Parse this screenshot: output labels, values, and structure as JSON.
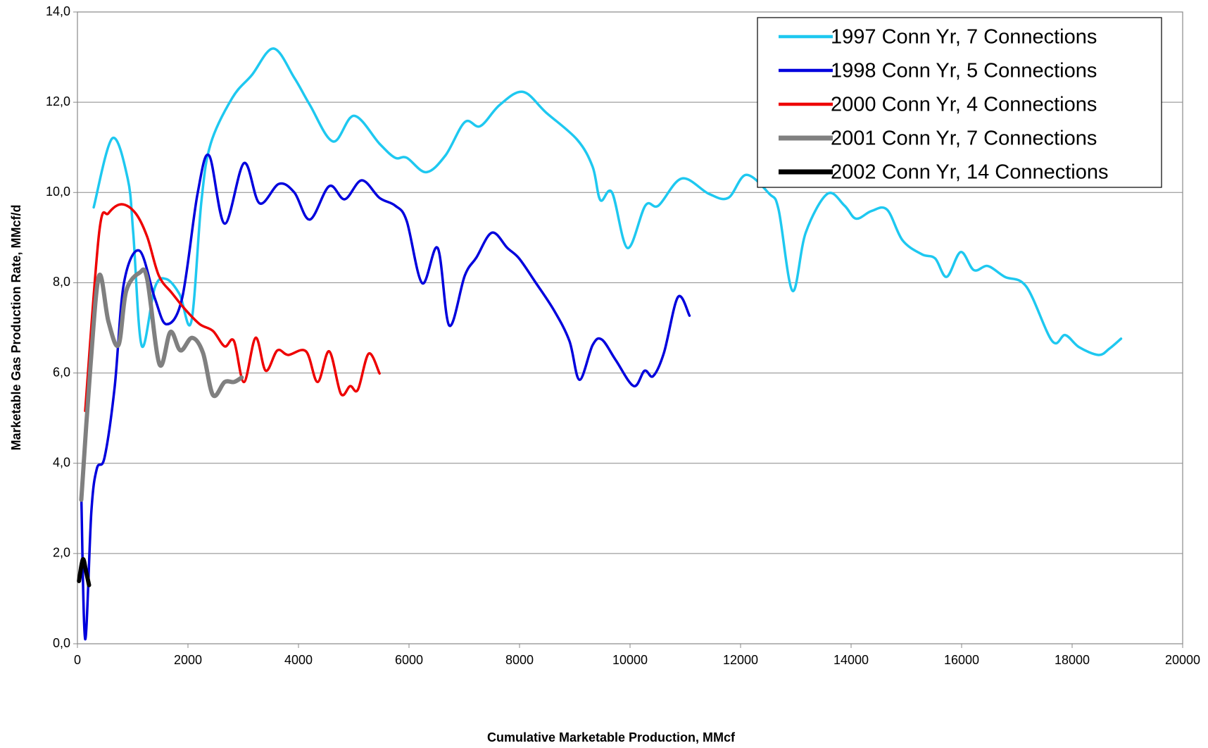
{
  "chart_data": {
    "type": "line",
    "x_label": "Cumulative Marketable Production, MMcf",
    "y_label": "Marketable Gas Production Rate, MMcf/d",
    "xlim": [
      0,
      20000
    ],
    "xticks": [
      0,
      2000,
      4000,
      6000,
      8000,
      10000,
      12000,
      14000,
      16000,
      18000,
      20000
    ],
    "ylim": [
      0,
      14
    ],
    "yticks": [
      {
        "value": 0,
        "label": "0,0"
      },
      {
        "value": 2,
        "label": "2,0"
      },
      {
        "value": 4,
        "label": "4,0"
      },
      {
        "value": 6,
        "label": "6,0"
      },
      {
        "value": 8,
        "label": "8,0"
      },
      {
        "value": 10,
        "label": "10,0"
      },
      {
        "value": 12,
        "label": "12,0"
      },
      {
        "value": 14,
        "label": "14,0"
      }
    ],
    "grid": true,
    "legend": "upper right",
    "series": [
      {
        "name": "1997 Conn Yr, 7 Connections",
        "color": "#1ec8f0",
        "width": 3.5,
        "x": [
          294,
          631,
          911,
          1010,
          1164,
          1402,
          1612,
          1851,
          2061,
          2243,
          2411,
          2804,
          3154,
          3547,
          3925,
          4206,
          4626,
          5005,
          5467,
          5748,
          5958,
          6309,
          6659,
          7010,
          7290,
          7641,
          8061,
          8482,
          9043,
          9323,
          9463,
          9674,
          9954,
          10277,
          10515,
          10936,
          11427,
          11777,
          12100,
          12520,
          12688,
          12940,
          13179,
          13571,
          13880,
          14090,
          14370,
          14651,
          14931,
          15282,
          15520,
          15730,
          15983,
          16221,
          16474,
          16782,
          17174,
          17637,
          17875,
          18128,
          18479,
          18675,
          18885
        ],
        "values": [
          9.67,
          11.2,
          10.3,
          9.1,
          6.6,
          7.9,
          8.08,
          7.74,
          7.14,
          9.8,
          11.08,
          12.1,
          12.6,
          13.19,
          12.54,
          11.94,
          11.13,
          11.7,
          11.08,
          10.77,
          10.77,
          10.45,
          10.82,
          11.56,
          11.47,
          11.94,
          12.23,
          11.77,
          11.17,
          10.57,
          9.83,
          10.0,
          8.77,
          9.71,
          9.71,
          10.31,
          9.97,
          9.88,
          10.39,
          9.97,
          9.62,
          7.82,
          9.11,
          9.97,
          9.71,
          9.42,
          9.59,
          9.62,
          8.94,
          8.63,
          8.54,
          8.13,
          8.68,
          8.28,
          8.37,
          8.13,
          7.91,
          6.71,
          6.84,
          6.57,
          6.4,
          6.54,
          6.76
        ]
      },
      {
        "name": "1998 Conn Yr, 5 Connections",
        "color": "#0000dd",
        "width": 3.5,
        "x": [
          70,
          140,
          252,
          351,
          491,
          673,
          841,
          1122,
          1402,
          1612,
          1893,
          2173,
          2383,
          2664,
          3014,
          3295,
          3645,
          3925,
          4206,
          4556,
          4837,
          5145,
          5467,
          5748,
          5958,
          6239,
          6519,
          6729,
          7010,
          7220,
          7501,
          7781,
          7992,
          8272,
          8623,
          8903,
          9085,
          9323,
          9491,
          9744,
          10067,
          10263,
          10417,
          10614,
          10866,
          11076
        ],
        "values": [
          3.28,
          0.1,
          2.93,
          3.88,
          4.13,
          5.68,
          7.99,
          8.71,
          7.65,
          7.08,
          7.65,
          9.97,
          10.82,
          9.31,
          10.65,
          9.76,
          10.19,
          10.0,
          9.4,
          10.14,
          9.85,
          10.27,
          9.88,
          9.71,
          9.37,
          7.99,
          8.77,
          7.05,
          8.16,
          8.56,
          9.11,
          8.77,
          8.54,
          8.04,
          7.39,
          6.71,
          5.85,
          6.62,
          6.74,
          6.28,
          5.71,
          6.05,
          5.93,
          6.45,
          7.68,
          7.27
        ]
      },
      {
        "name": "2000 Conn Yr, 4 Connections",
        "color": "#ee0000",
        "width": 3.5,
        "x": [
          140,
          393,
          561,
          799,
          1052,
          1262,
          1472,
          1711,
          1963,
          2215,
          2453,
          2664,
          2832,
          3014,
          3224,
          3407,
          3617,
          3813,
          4136,
          4346,
          4556,
          4767,
          4935,
          5075,
          5271,
          5467
        ],
        "values": [
          5.16,
          9.11,
          9.54,
          9.74,
          9.54,
          9.02,
          8.16,
          7.77,
          7.39,
          7.08,
          6.93,
          6.59,
          6.71,
          5.8,
          6.78,
          6.05,
          6.5,
          6.4,
          6.48,
          5.8,
          6.48,
          5.54,
          5.71,
          5.63,
          6.43,
          5.99
        ]
      },
      {
        "name": "2001 Conn Yr, 7 Connections",
        "color": "#808080",
        "width": 6,
        "x": [
          70,
          238,
          393,
          561,
          743,
          883,
          1122,
          1262,
          1486,
          1683,
          1865,
          2075,
          2271,
          2453,
          2664,
          2832,
          2972
        ],
        "values": [
          3.19,
          6.19,
          8.16,
          7.14,
          6.62,
          7.82,
          8.22,
          8.08,
          6.19,
          6.91,
          6.5,
          6.78,
          6.45,
          5.51,
          5.8,
          5.8,
          5.9
        ]
      },
      {
        "name": "2002 Conn Yr, 14 Connections",
        "color": "#000000",
        "width": 6,
        "x": [
          28,
          98,
          154,
          210
        ],
        "values": [
          1.39,
          1.87,
          1.61,
          1.3
        ]
      }
    ]
  }
}
